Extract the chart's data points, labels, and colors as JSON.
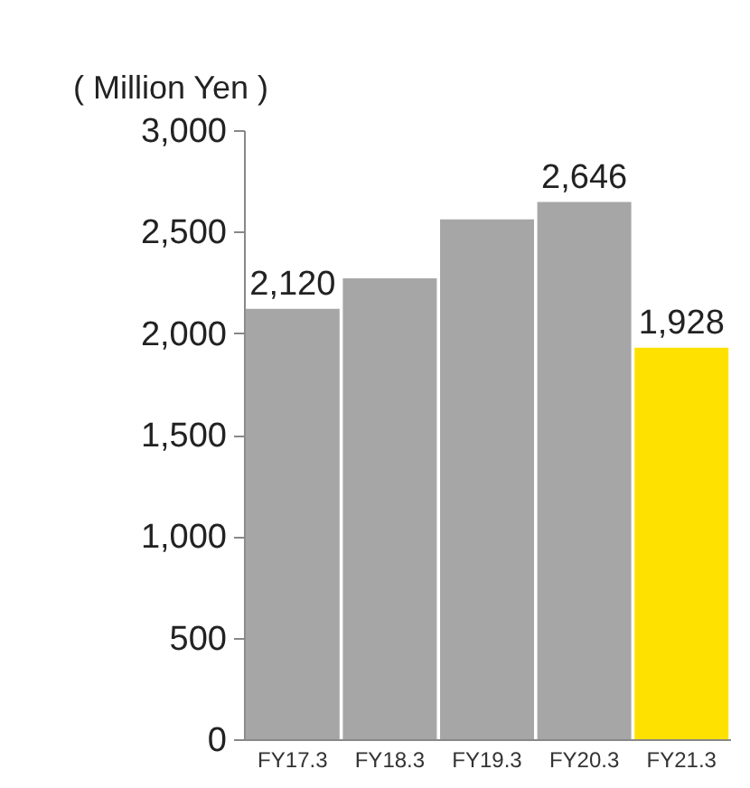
{
  "chart_data": {
    "type": "bar",
    "ylabel": "( Million Yen )",
    "categories": [
      "FY17.3",
      "FY18.3",
      "FY19.3",
      "FY20.3",
      "FY21.3"
    ],
    "values": [
      2120,
      2270,
      2560,
      2646,
      1928
    ],
    "value_labels": [
      "2,120",
      null,
      null,
      "2,646",
      "1,928"
    ],
    "colors": [
      "#a6a6a6",
      "#a6a6a6",
      "#a6a6a6",
      "#a6a6a6",
      "#ffe100"
    ],
    "ylim": [
      0,
      3000
    ],
    "yticks": [
      0,
      500,
      {
        "value": 1000,
        "label": "1,000"
      },
      {
        "value": 1500,
        "label": "1,500"
      },
      {
        "value": 2000,
        "label": "2,000"
      },
      {
        "value": 2500,
        "label": "2,500"
      },
      {
        "value": 3000,
        "label": "3,000"
      }
    ],
    "grid": false
  }
}
